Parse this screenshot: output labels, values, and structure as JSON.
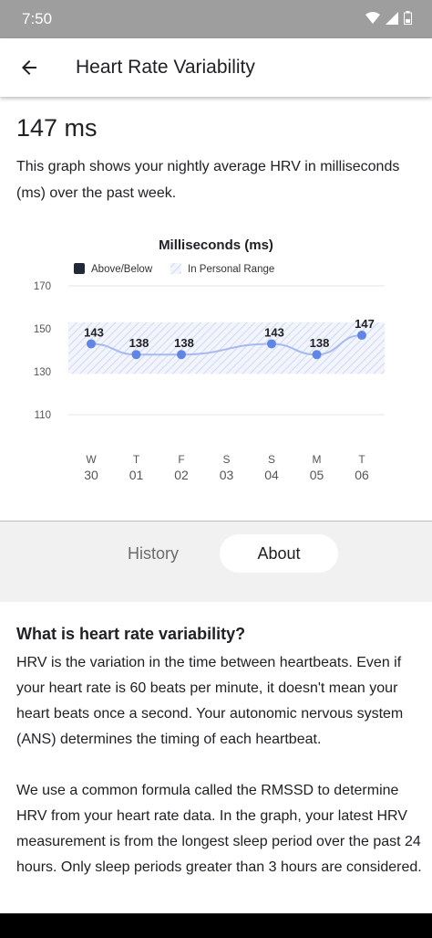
{
  "status": {
    "time": "7:50"
  },
  "header": {
    "title": "Heart Rate Variability"
  },
  "summary": {
    "value": "147 ms",
    "description": "This graph shows your nightly average HRV in milliseconds (ms) over the past week."
  },
  "chart_data": {
    "type": "line",
    "title": "Milliseconds (ms)",
    "legend": [
      {
        "label": "Above/Below",
        "color": "#1f2a36"
      },
      {
        "label": "In Personal Range",
        "color": "#aab6df"
      }
    ],
    "ylim": [
      110,
      170
    ],
    "yticks": [
      170,
      150,
      130,
      110
    ],
    "range_band": [
      129,
      153
    ],
    "categories": [
      {
        "day": "W",
        "date": "30"
      },
      {
        "day": "T",
        "date": "01"
      },
      {
        "day": "F",
        "date": "02"
      },
      {
        "day": "S",
        "date": "03"
      },
      {
        "day": "S",
        "date": "04"
      },
      {
        "day": "M",
        "date": "05"
      },
      {
        "day": "T",
        "date": "06"
      }
    ],
    "values": [
      143,
      138,
      138,
      null,
      143,
      138,
      147
    ],
    "data_labels": [
      "143",
      "138",
      "138",
      "",
      "143",
      "138",
      "147"
    ],
    "line_color": "#a6b9f2",
    "point_color": "#5f86e6"
  },
  "tabs": {
    "history": "History",
    "about": "About"
  },
  "about": {
    "heading": "What is heart rate variability?",
    "paragraph1": "HRV is the variation in the time between heartbeats. Even if your heart rate is 60 beats per minute, it doesn't mean your heart beats once a second. Your autonomic nervous system (ANS) determines the timing of each heartbeat.",
    "paragraph2": "We use a common formula called the RMSSD to determine HRV from your heart rate data. In the graph, your latest HRV measurement is from the longest sleep period over the past 24 hours. Only sleep periods greater than 3 hours are considered."
  }
}
